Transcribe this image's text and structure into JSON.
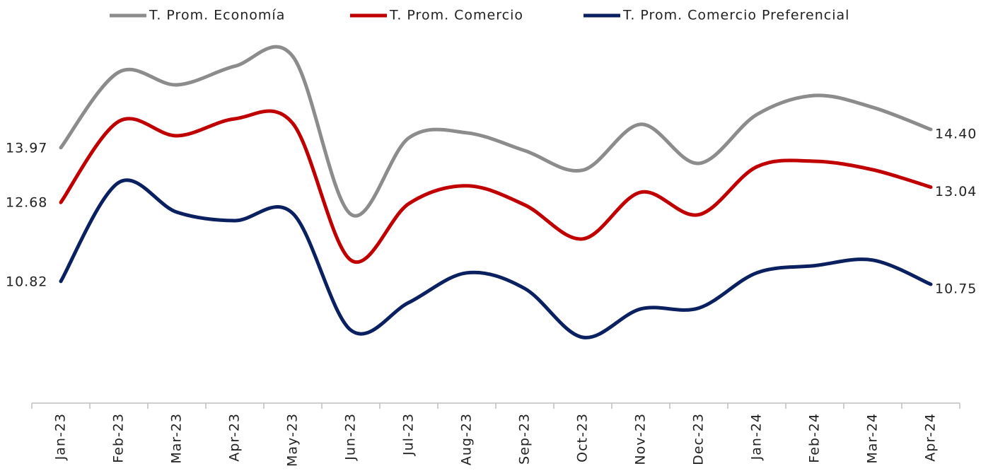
{
  "chart_data": {
    "type": "line",
    "categories": [
      "Jan-23",
      "Feb-23",
      "Mar-23",
      "Apr-23",
      "May-23",
      "Jun-23",
      "Jul-23",
      "Aug-23",
      "Sep-23",
      "Oct-23",
      "Nov-23",
      "Dec-23",
      "Jan-24",
      "Feb-24",
      "Mar-24",
      "Apr-24"
    ],
    "series": [
      {
        "name": "T. Prom. Economía",
        "color": "#8c8c8c",
        "values": [
          13.97,
          15.75,
          15.45,
          15.89,
          16.12,
          12.4,
          14.2,
          14.32,
          13.9,
          13.44,
          14.52,
          13.6,
          14.75,
          15.2,
          14.92,
          14.4
        ],
        "value_labels": [
          "13.97",
          null,
          null,
          null,
          null,
          null,
          null,
          null,
          null,
          null,
          null,
          null,
          null,
          null,
          null,
          "14.40"
        ]
      },
      {
        "name": "T. Prom. Comercio",
        "color": "#c00000",
        "values": [
          12.68,
          14.59,
          14.25,
          14.65,
          14.54,
          11.32,
          12.65,
          13.07,
          12.62,
          11.82,
          12.92,
          12.39,
          13.52,
          13.65,
          13.45,
          13.04
        ],
        "value_labels": [
          "12.68",
          null,
          null,
          null,
          null,
          null,
          null,
          null,
          null,
          null,
          null,
          null,
          null,
          null,
          null,
          "13.04"
        ]
      },
      {
        "name": "T. Prom. Comercio Preferencial",
        "color": "#0b2060",
        "values": [
          10.82,
          13.15,
          12.45,
          12.25,
          12.42,
          9.67,
          10.32,
          11.02,
          10.65,
          9.5,
          10.17,
          10.19,
          11.02,
          11.19,
          11.32,
          10.75
        ],
        "value_labels": [
          "10.82",
          null,
          null,
          null,
          null,
          null,
          null,
          null,
          null,
          null,
          null,
          null,
          null,
          null,
          null,
          "10.75"
        ]
      }
    ],
    "ylim": [
      7.95,
      17.45
    ],
    "legend": "top"
  }
}
